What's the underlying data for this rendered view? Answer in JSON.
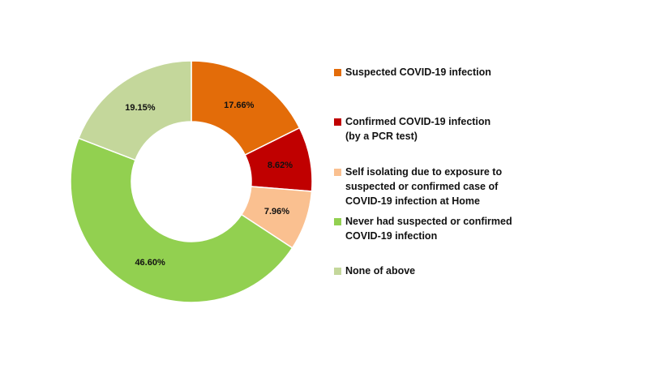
{
  "chart_data": {
    "type": "pie",
    "donut": true,
    "title": "",
    "legend_position": "right",
    "series": [
      {
        "name": "Suspected COVID-19 infection",
        "value": 17.66,
        "label": "17.66%",
        "color": "#E36C09"
      },
      {
        "name": "Confirmed COVID-19 infection (by a PCR test)",
        "value": 8.62,
        "label": "8.62%",
        "color": "#C00000"
      },
      {
        "name": "Self isolating due to exposure to suspected or confirmed case of COVID-19 infection at Home",
        "value": 7.96,
        "label": "7.96%",
        "color": "#FAC090"
      },
      {
        "name": "Never had suspected or confirmed COVID-19 infection",
        "value": 46.6,
        "label": "46.60%",
        "color": "#92D050"
      },
      {
        "name": "None of above",
        "value": 19.15,
        "label": "19.15%",
        "color": "#C4D79B"
      }
    ]
  }
}
